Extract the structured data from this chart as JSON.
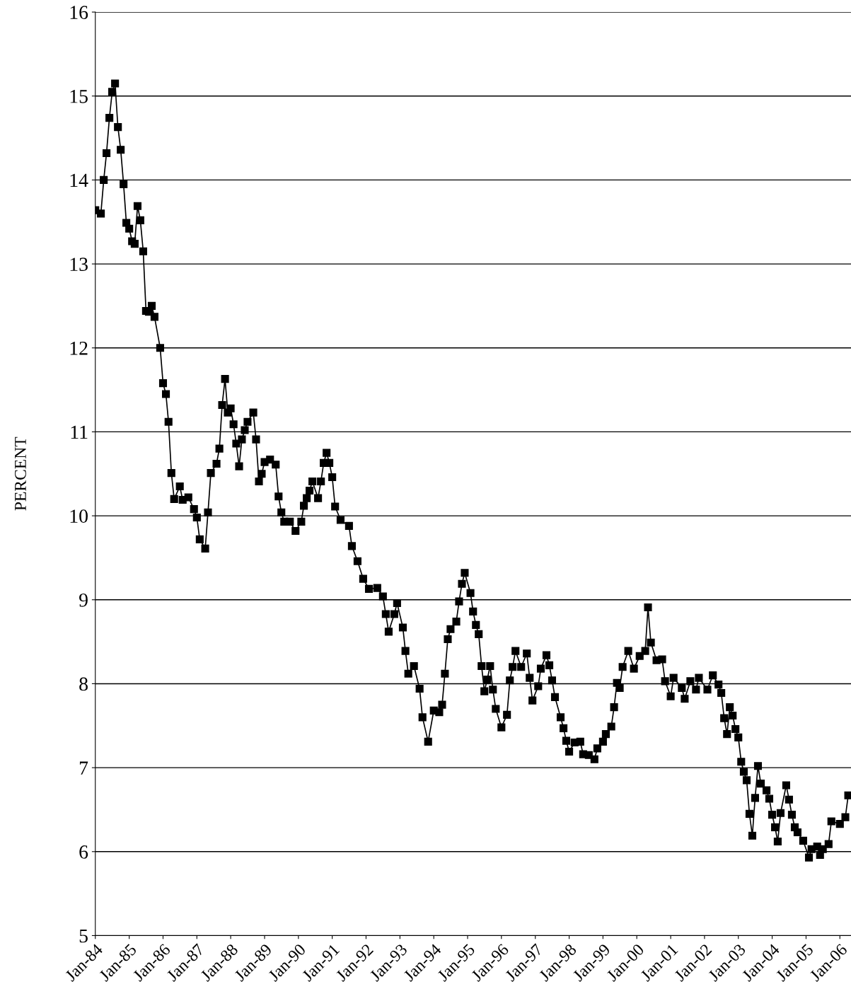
{
  "chart_data": {
    "type": "line",
    "ylabel": "PERCENT",
    "xlim": [
      "1984-01",
      "2006-05"
    ],
    "ylim": [
      5,
      16
    ],
    "xticks": [
      {
        "value": "1984-01",
        "label": "Jan-84"
      },
      {
        "value": "1985-01",
        "label": "Jan-85"
      },
      {
        "value": "1986-01",
        "label": "Jan-86"
      },
      {
        "value": "1987-01",
        "label": "Jan-87"
      },
      {
        "value": "1988-01",
        "label": "Jan-88"
      },
      {
        "value": "1989-01",
        "label": "Jan-89"
      },
      {
        "value": "1990-01",
        "label": "Jan-90"
      },
      {
        "value": "1991-01",
        "label": "Jan-91"
      },
      {
        "value": "1992-01",
        "label": "Jan-92"
      },
      {
        "value": "1993-01",
        "label": "Jan-93"
      },
      {
        "value": "1994-01",
        "label": "Jan-94"
      },
      {
        "value": "1995-01",
        "label": "Jan-95"
      },
      {
        "value": "1996-01",
        "label": "Jan-96"
      },
      {
        "value": "1997-01",
        "label": "Jan-97"
      },
      {
        "value": "1998-01",
        "label": "Jan-98"
      },
      {
        "value": "1999-01",
        "label": "Jan-99"
      },
      {
        "value": "2000-01",
        "label": "Jan-00"
      },
      {
        "value": "2001-01",
        "label": "Jan-01"
      },
      {
        "value": "2002-01",
        "label": "Jan-02"
      },
      {
        "value": "2003-01",
        "label": "Jan-03"
      },
      {
        "value": "2004-01",
        "label": "Jan-04"
      },
      {
        "value": "2005-01",
        "label": "Jan-05"
      },
      {
        "value": "2006-01",
        "label": "Jan-06"
      }
    ],
    "yticks": [
      5,
      6,
      7,
      8,
      9,
      10,
      11,
      12,
      13,
      14,
      15,
      16
    ],
    "grid": "y",
    "marker": "square",
    "line_style": "solid",
    "legend": false,
    "series": [
      {
        "color": "#000000",
        "x": [
          "1984-01",
          "1984-03",
          "1984-04",
          "1984-05",
          "1984-06",
          "1984-07",
          "1984-08",
          "1984-09",
          "1984-10",
          "1984-11",
          "1984-12",
          "1985-01",
          "1985-02",
          "1985-03",
          "1985-04",
          "1985-05",
          "1985-06",
          "1985-07",
          "1985-08",
          "1985-09",
          "1985-10",
          "1985-12",
          "1986-01",
          "1986-02",
          "1986-03",
          "1986-04",
          "1986-05",
          "1986-07",
          "1986-08",
          "1986-10",
          "1986-12",
          "1987-01",
          "1987-02",
          "1987-04",
          "1987-05",
          "1987-06",
          "1987-08",
          "1987-09",
          "1987-10",
          "1987-11",
          "1987-12",
          "1988-01",
          "1988-02",
          "1988-03",
          "1988-04",
          "1988-05",
          "1988-06",
          "1988-07",
          "1988-09",
          "1988-10",
          "1988-11",
          "1988-12",
          "1989-01",
          "1989-03",
          "1989-05",
          "1989-06",
          "1989-07",
          "1989-08",
          "1989-10",
          "1989-12",
          "1990-02",
          "1990-03",
          "1990-04",
          "1990-05",
          "1990-06",
          "1990-08",
          "1990-09",
          "1990-10",
          "1990-11",
          "1990-12",
          "1991-01",
          "1991-02",
          "1991-04",
          "1991-07",
          "1991-08",
          "1991-10",
          "1991-12",
          "1992-02",
          "1992-05",
          "1992-07",
          "1992-08",
          "1992-09",
          "1992-11",
          "1992-12",
          "1993-02",
          "1993-03",
          "1993-04",
          "1993-06",
          "1993-08",
          "1993-09",
          "1993-11",
          "1994-01",
          "1994-03",
          "1994-04",
          "1994-05",
          "1994-06",
          "1994-07",
          "1994-09",
          "1994-10",
          "1994-11",
          "1994-12",
          "1995-02",
          "1995-03",
          "1995-04",
          "1995-05",
          "1995-06",
          "1995-07",
          "1995-08",
          "1995-09",
          "1995-10",
          "1995-11",
          "1996-01",
          "1996-03",
          "1996-04",
          "1996-05",
          "1996-06",
          "1996-08",
          "1996-10",
          "1996-11",
          "1996-12",
          "1997-02",
          "1997-03",
          "1997-05",
          "1997-06",
          "1997-07",
          "1997-08",
          "1997-10",
          "1997-11",
          "1997-12",
          "1998-01",
          "1998-03",
          "1998-05",
          "1998-06",
          "1998-08",
          "1998-10",
          "1998-11",
          "1999-01",
          "1999-02",
          "1999-04",
          "1999-05",
          "1999-06",
          "1999-07",
          "1999-08",
          "1999-10",
          "1999-12",
          "2000-02",
          "2000-04",
          "2000-05",
          "2000-06",
          "2000-08",
          "2000-10",
          "2000-11",
          "2001-01",
          "2001-02",
          "2001-05",
          "2001-06",
          "2001-08",
          "2001-10",
          "2001-11",
          "2002-02",
          "2002-04",
          "2002-06",
          "2002-07",
          "2002-08",
          "2002-09",
          "2002-10",
          "2002-11",
          "2002-12",
          "2003-01",
          "2003-02",
          "2003-03",
          "2003-04",
          "2003-05",
          "2003-06",
          "2003-07",
          "2003-08",
          "2003-09",
          "2003-11",
          "2003-12",
          "2004-01",
          "2004-02",
          "2004-03",
          "2004-04",
          "2004-06",
          "2004-07",
          "2004-08",
          "2004-09",
          "2004-10",
          "2004-12",
          "2005-02",
          "2005-03",
          "2005-05",
          "2005-06",
          "2005-07",
          "2005-09",
          "2005-10",
          "2006-01",
          "2006-03",
          "2006-04"
        ],
        "values": [
          13.64,
          13.6,
          14.0,
          14.32,
          14.74,
          15.05,
          15.15,
          14.63,
          14.36,
          13.95,
          13.49,
          13.42,
          13.27,
          13.24,
          13.69,
          13.52,
          13.15,
          12.44,
          12.43,
          12.5,
          12.37,
          12.0,
          11.58,
          11.45,
          11.12,
          10.51,
          10.2,
          10.35,
          10.19,
          10.22,
          10.08,
          9.98,
          9.72,
          9.61,
          10.04,
          10.51,
          10.62,
          10.8,
          11.32,
          11.63,
          11.23,
          11.28,
          11.09,
          10.86,
          10.59,
          10.91,
          11.02,
          11.12,
          11.23,
          10.91,
          10.41,
          10.5,
          10.64,
          10.67,
          10.61,
          10.23,
          10.04,
          9.93,
          9.93,
          9.82,
          9.93,
          10.12,
          10.21,
          10.3,
          10.41,
          10.21,
          10.41,
          10.63,
          10.75,
          10.63,
          10.46,
          10.11,
          9.95,
          9.88,
          9.64,
          9.46,
          9.25,
          9.13,
          9.14,
          9.04,
          8.83,
          8.62,
          8.83,
          8.96,
          8.67,
          8.39,
          8.12,
          8.21,
          7.94,
          7.6,
          7.31,
          7.68,
          7.66,
          7.75,
          8.12,
          8.53,
          8.65,
          8.74,
          8.98,
          9.19,
          9.32,
          9.08,
          8.86,
          8.7,
          8.59,
          8.21,
          7.91,
          8.05,
          8.21,
          7.93,
          7.7,
          7.48,
          7.63,
          8.04,
          8.2,
          8.39,
          8.2,
          8.36,
          8.07,
          7.8,
          7.97,
          8.18,
          8.34,
          8.22,
          8.04,
          7.84,
          7.6,
          7.47,
          7.32,
          7.19,
          7.3,
          7.31,
          7.16,
          7.15,
          7.1,
          7.23,
          7.31,
          7.4,
          7.49,
          7.72,
          8.01,
          7.95,
          8.2,
          8.39,
          8.18,
          8.33,
          8.39,
          8.91,
          8.49,
          8.28,
          8.29,
          8.03,
          7.85,
          8.07,
          7.95,
          7.82,
          8.03,
          7.93,
          8.07,
          7.93,
          8.1,
          7.99,
          7.89,
          7.59,
          7.4,
          7.72,
          7.62,
          7.46,
          7.36,
          7.07,
          6.95,
          6.85,
          6.45,
          6.19,
          6.64,
          7.02,
          6.81,
          6.73,
          6.63,
          6.44,
          6.29,
          6.12,
          6.46,
          6.79,
          6.62,
          6.44,
          6.29,
          6.23,
          6.13,
          5.93,
          6.03,
          6.06,
          5.96,
          6.03,
          6.09,
          6.36,
          6.33,
          6.41,
          6.67
        ]
      }
    ]
  }
}
